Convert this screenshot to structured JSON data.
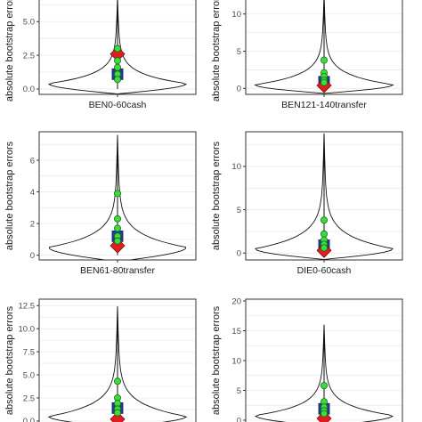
{
  "chart_data": [
    {
      "type": "violin",
      "category": "BEN0-60cash",
      "ylabel": "absolute bootstrap errors",
      "yticks": [
        0.0,
        2.5,
        5.0
      ],
      "tick_labels": [
        "0.0",
        "2.5",
        "5.0"
      ],
      "ylim": [
        -0.4,
        7.0
      ],
      "violin": {
        "max": 6.8,
        "widest_at": 0.4
      },
      "points": [
        3.0,
        2.1,
        1.6,
        1.1,
        0.7
      ],
      "square": 1.1,
      "diamond": 2.6,
      "grid": true
    },
    {
      "type": "violin",
      "category": "BEN121-140transfer",
      "ylabel": "absolute bootstrap errors",
      "yticks": [
        0,
        5,
        10
      ],
      "tick_labels": [
        "0",
        "5",
        "10"
      ],
      "ylim": [
        -0.8,
        12.6
      ],
      "violin": {
        "max": 12.6,
        "widest_at": 0.5
      },
      "points": [
        3.8,
        2.1,
        1.6,
        1.1,
        0.8
      ],
      "square": 0.9,
      "diamond": 0.4,
      "grid": true
    },
    {
      "type": "violin",
      "category": "BEN61-80transfer",
      "ylabel": "absolute bootstrap errors",
      "yticks": [
        0,
        2,
        4,
        6
      ],
      "tick_labels": [
        "0",
        "2",
        "4",
        "6"
      ],
      "ylim": [
        -0.3,
        7.8
      ],
      "violin": {
        "max": 7.6,
        "widest_at": 0.5
      },
      "points": [
        3.9,
        2.3,
        1.7,
        1.2,
        0.9
      ],
      "square": 1.2,
      "diamond": 0.6,
      "grid": true
    },
    {
      "type": "violin",
      "category": "DIE0-60cash",
      "ylabel": "absolute bootstrap errors",
      "yticks": [
        0,
        5,
        10
      ],
      "tick_labels": [
        "0",
        "5",
        "10"
      ],
      "ylim": [
        -0.8,
        14.0
      ],
      "violin": {
        "max": 13.8,
        "widest_at": 0.5
      },
      "points": [
        3.8,
        2.2,
        1.5,
        1.0,
        0.6
      ],
      "square": 0.9,
      "diamond": 0.3,
      "grid": true
    },
    {
      "type": "violin",
      "category": "",
      "ylabel": "absolute bootstrap errors",
      "yticks": [
        0.0,
        2.5,
        5.0,
        7.5,
        10.0,
        12.5
      ],
      "tick_labels": [
        "0.0",
        "2.5",
        "5.0",
        "7.5",
        "10.0",
        "12.5"
      ],
      "ylim": [
        -0.3,
        13.2
      ],
      "violin": {
        "max": 12.4,
        "widest_at": 0.5
      },
      "points": [
        4.3,
        2.5,
        1.9,
        1.3,
        0.9
      ],
      "square": 1.4,
      "diamond": 0.2,
      "grid": true
    },
    {
      "type": "violin",
      "category": "",
      "ylabel": "absolute bootstrap errors",
      "yticks": [
        0,
        5,
        10,
        15,
        20
      ],
      "tick_labels": [
        "0",
        "5",
        "10",
        "15",
        "20"
      ],
      "ylim": [
        -0.6,
        20.3
      ],
      "violin": {
        "max": 16.0,
        "widest_at": 0.8
      },
      "points": [
        5.8,
        3.1,
        2.2,
        1.6,
        1.1
      ],
      "square": 1.9,
      "diamond": 0.3,
      "grid": true
    }
  ],
  "colors": {
    "point_fill": "#3ddc3d",
    "point_stroke": "#1a6b1a",
    "square_fill": "#1f3f9e",
    "diamond_fill": "#e01e1e",
    "panel_border": "#333333",
    "grid": "#ebebeb"
  }
}
